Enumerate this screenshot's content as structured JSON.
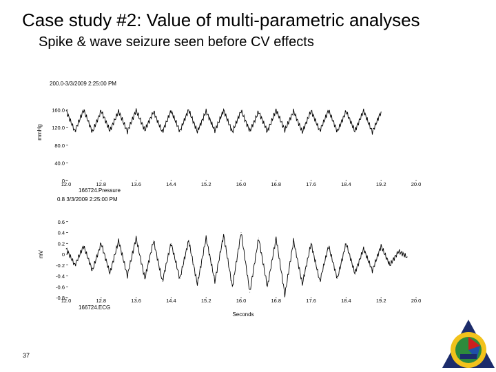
{
  "slide": {
    "title": "Case study #2: Value of multi-parametric analyses",
    "subtitle": "Spike & wave seizure seen before CV effects",
    "page_number": "37"
  },
  "colors": {
    "trace": "#000000",
    "background": "#ffffff",
    "logo_red": "#cc1f1f",
    "logo_blue": "#1f4fa8",
    "logo_yellow": "#f2c21b",
    "logo_green": "#2e8b3c",
    "logo_navy": "#1c2c6b"
  },
  "logo": {
    "icon": "society-emblem-icon"
  },
  "chart_data": [
    {
      "type": "line",
      "header": "200.0-3/3/2009 2:25:00 PM",
      "ylabel": "mmHg",
      "xlabel": "",
      "channel_label": "166724.Pressure",
      "xlim": [
        12.0,
        20.0
      ],
      "ylim": [
        0,
        200
      ],
      "x_ticks": [
        12.0,
        12.8,
        13.6,
        14.4,
        15.2,
        16.0,
        16.8,
        17.6,
        18.4,
        19.2,
        20.0
      ],
      "x_tick_labels": [
        "12.0",
        "12.8",
        "13.6",
        "14.4",
        "15.2",
        "16.0",
        "16.8",
        "17.6",
        "18.4",
        "19.2",
        "20.0"
      ],
      "y_ticks": [
        0,
        40,
        80,
        120,
        160
      ],
      "y_tick_labels": [
        "0",
        "40.0",
        "80.0",
        "120.0",
        "160.0"
      ],
      "grid": false,
      "series": [
        {
          "x": [
            12.0,
            12.2,
            12.4,
            12.6,
            12.8,
            13.0,
            13.2,
            13.4,
            13.6,
            13.8,
            14.0,
            14.2,
            14.4,
            14.6,
            14.8,
            15.0,
            15.2,
            15.4,
            15.6,
            15.8,
            16.0,
            16.2,
            16.4,
            16.6,
            16.8,
            17.0,
            17.2,
            17.4,
            17.6,
            17.8,
            18.0,
            18.2,
            18.4,
            18.6,
            18.8,
            19.0,
            19.2
          ],
          "y": [
            158,
            112,
            160,
            110,
            158,
            113,
            157,
            111,
            159,
            114,
            156,
            110,
            158,
            112,
            160,
            111,
            157,
            113,
            159,
            110,
            158,
            112,
            156,
            111,
            160,
            114,
            157,
            110,
            158,
            113,
            159,
            111,
            157,
            112,
            158,
            110,
            156
          ]
        }
      ]
    },
    {
      "type": "line",
      "header": "0.8 3/3/2009 2:25:00 PM",
      "ylabel": "mV",
      "xlabel": "Seconds",
      "channel_label": "166724.ECG",
      "xlim": [
        12.0,
        20.0
      ],
      "ylim": [
        -0.8,
        0.8
      ],
      "x_ticks": [
        12.0,
        12.8,
        13.6,
        14.4,
        15.2,
        16.0,
        16.8,
        17.6,
        18.4,
        19.2,
        20.0
      ],
      "x_tick_labels": [
        "12.0",
        "12.8",
        "13.6",
        "14.4",
        "15.2",
        "16.0",
        "16.8",
        "17.6",
        "18.4",
        "19.2",
        "20.0"
      ],
      "y_ticks": [
        -0.8,
        -0.6,
        -0.4,
        -0.2,
        0,
        0.2,
        0.4,
        0.6
      ],
      "y_tick_labels": [
        "-0.8",
        "-0.6",
        "-0.4",
        "-0.2",
        "0",
        "0.2",
        "0.4",
        "0.6"
      ],
      "grid": false,
      "series": [
        {
          "x": [
            12.0,
            12.2,
            12.4,
            12.6,
            12.8,
            13.0,
            13.2,
            13.4,
            13.6,
            13.8,
            14.0,
            14.2,
            14.4,
            14.6,
            14.8,
            15.0,
            15.2,
            15.4,
            15.6,
            15.8,
            16.0,
            16.2,
            16.4,
            16.6,
            16.8,
            17.0,
            17.2,
            17.4,
            17.6,
            17.8,
            18.0,
            18.2,
            18.4,
            18.6,
            18.8,
            19.0,
            19.2,
            19.4,
            19.6,
            19.8
          ],
          "y": [
            0.1,
            -0.2,
            0.15,
            -0.3,
            0.2,
            -0.35,
            0.25,
            -0.4,
            0.3,
            -0.45,
            0.25,
            -0.5,
            0.2,
            -0.45,
            0.25,
            -0.55,
            0.3,
            -0.5,
            0.35,
            -0.6,
            0.4,
            -0.7,
            0.3,
            -0.6,
            0.3,
            -0.75,
            0.25,
            -0.55,
            0.2,
            -0.5,
            0.15,
            -0.45,
            0.2,
            -0.35,
            0.1,
            -0.3,
            0.15,
            -0.2,
            0.05,
            -0.05
          ]
        }
      ]
    }
  ]
}
